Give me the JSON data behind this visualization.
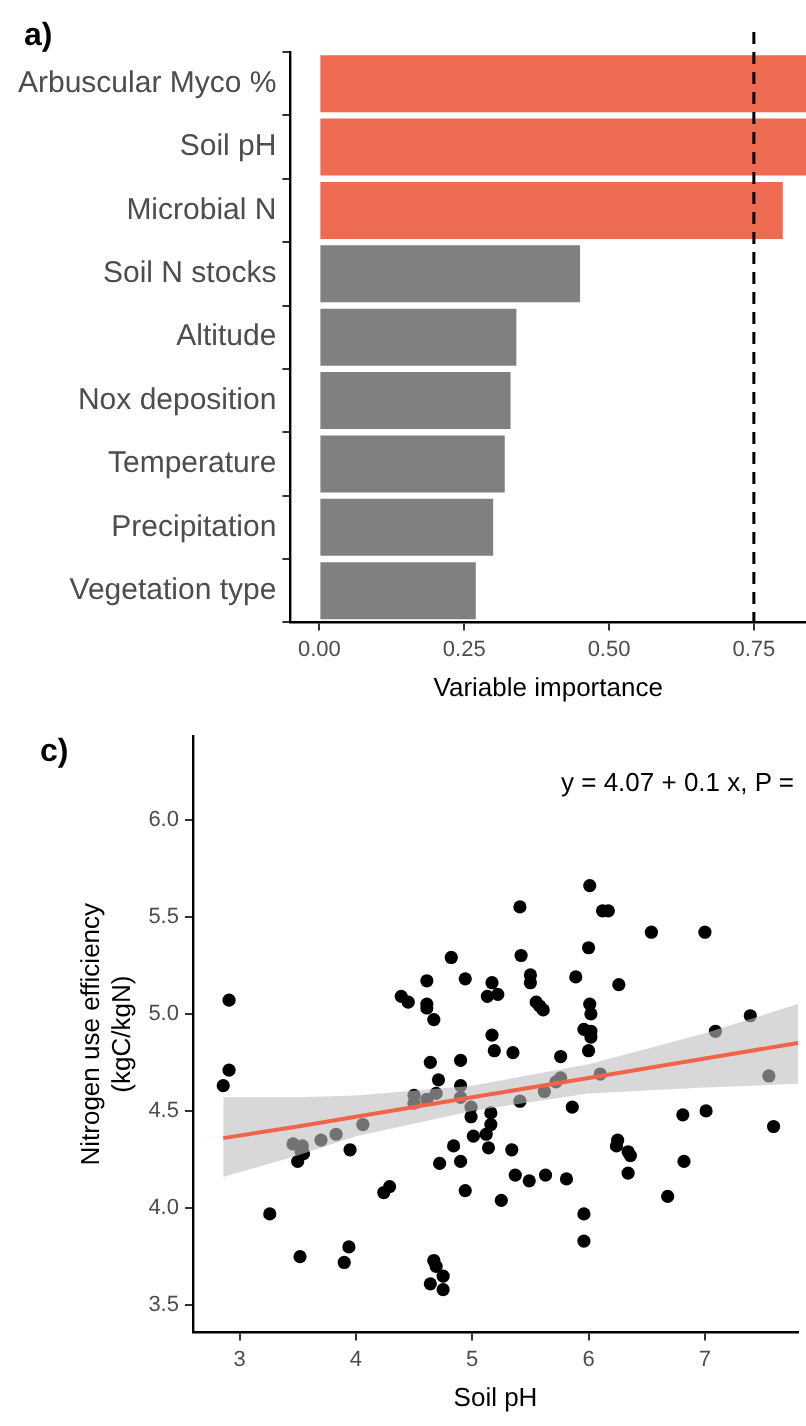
{
  "chart_data": [
    {
      "type": "bar",
      "orientation": "horizontal",
      "title": "a)",
      "xlabel": "Variable importance",
      "categories": [
        "Arbuscular Myco %",
        "Soil pH",
        "Microbial N",
        "Soil N stocks",
        "Altitude",
        "Nox deposition",
        "Temperature",
        "Precipitation",
        "Vegetation type"
      ],
      "values": [
        0.84,
        0.84,
        0.8,
        0.45,
        0.34,
        0.33,
        0.32,
        0.3,
        0.27
      ],
      "colors": [
        "#ee6a50",
        "#ee6a50",
        "#ee6a50",
        "#808080",
        "#808080",
        "#808080",
        "#808080",
        "#808080",
        "#808080"
      ],
      "xlim": [
        -0.05,
        0.84
      ],
      "xticks": [
        {
          "value": 0,
          "label": "0.00"
        },
        {
          "value": 0.25,
          "label": "0.25"
        },
        {
          "value": 0.5,
          "label": "0.50"
        },
        {
          "value": 0.75,
          "label": "0.75"
        }
      ],
      "ref_lines": [
        {
          "axis": "x",
          "value": 0.75,
          "color": "#000000",
          "line_style": "dashed"
        }
      ],
      "grid": false,
      "legend": false
    },
    {
      "type": "scatter",
      "title": "c)",
      "xlabel": "Soil pH",
      "ylabel": "Nitrogen use efficiency\n(kgC/kgN)",
      "annotations": [
        "y = 4.07 + 0.1 x, P ="
      ],
      "xlim": [
        2.6,
        7.8
      ],
      "ylim": [
        3.36,
        6.43
      ],
      "xticks": [
        3,
        4,
        5,
        6,
        7
      ],
      "yticks": [
        {
          "value": 3.5,
          "label": "3.5"
        },
        {
          "value": 4,
          "label": "4.0"
        },
        {
          "value": 4.5,
          "label": "4.5"
        },
        {
          "value": 5,
          "label": "5.0"
        },
        {
          "value": 5.5,
          "label": "5.5"
        },
        {
          "value": 6,
          "label": "6.0"
        }
      ],
      "grid": false,
      "legend": false,
      "series": [
        {
          "type": "scatter",
          "marker": "circle",
          "color": "#000000",
          "x": [
            2.86,
            2.91,
            2.91,
            3.26,
            3.46,
            3.5,
            3.53,
            3.54,
            3.55,
            3.52,
            3.7,
            3.83,
            3.9,
            3.94,
            3.95,
            4.06,
            4.24,
            4.29,
            4.39,
            4.45,
            4.5,
            4.5,
            4.61,
            4.61,
            4.61,
            4.61,
            4.64,
            4.67,
            4.64,
            4.67,
            4.69,
            4.75,
            4.75,
            4.69,
            4.71,
            4.72,
            4.82,
            4.84,
            4.9,
            4.9,
            4.9,
            4.9,
            4.94,
            4.94,
            4.99,
            4.99,
            5.01,
            5.13,
            5.17,
            5.17,
            5.19,
            5.22,
            5.12,
            5.16,
            5.16,
            5.14,
            5.25,
            5.34,
            5.35,
            5.37,
            5.41,
            5.42,
            5.41,
            5.49,
            5.5,
            5.5,
            5.55,
            5.58,
            5.61,
            5.62,
            5.63,
            5.72,
            5.76,
            5.76,
            5.81,
            5.86,
            5.89,
            5.96,
            5.96,
            5.96,
            6.0,
            6.01,
            6.0,
            6.01,
            6.02,
            6.02,
            6.02,
            6.1,
            6.12,
            6.17,
            6.26,
            6.24,
            6.25,
            6.34,
            6.36,
            6.34,
            6.54,
            6.68,
            6.81,
            6.82,
            7.0,
            7.01,
            7.09,
            7.39,
            7.55,
            7.59
          ],
          "values": [
            4.63,
            5.07,
            4.71,
            3.97,
            4.33,
            4.24,
            4.29,
            4.32,
            4.28,
            3.75,
            4.35,
            4.38,
            3.72,
            3.8,
            4.3,
            4.43,
            4.08,
            4.11,
            5.09,
            5.06,
            4.58,
            4.54,
            4.56,
            5.17,
            5.05,
            5.03,
            4.75,
            4.97,
            3.61,
            3.73,
            3.7,
            3.65,
            3.58,
            4.59,
            4.66,
            4.23,
            5.29,
            4.32,
            4.76,
            4.63,
            4.57,
            4.24,
            5.18,
            4.09,
            4.52,
            4.47,
            4.37,
            5.09,
            4.89,
            5.16,
            4.81,
            5.1,
            4.38,
            4.43,
            4.49,
            4.31,
            4.04,
            4.3,
            4.8,
            4.17,
            5.55,
            5.3,
            4.55,
            4.14,
            5.2,
            5.16,
            5.06,
            5.04,
            5.02,
            4.6,
            4.17,
            4.65,
            4.67,
            4.78,
            4.15,
            4.52,
            5.19,
            3.97,
            3.83,
            4.92,
            5.34,
            5.66,
            4.81,
            5.05,
            5.0,
            4.91,
            4.88,
            4.69,
            5.53,
            5.53,
            5.15,
            4.32,
            4.35,
            4.29,
            4.27,
            4.18,
            5.42,
            4.06,
            4.48,
            4.24,
            5.42,
            4.5,
            4.91,
            4.99,
            4.68,
            4.42
          ]
        },
        {
          "type": "line",
          "marker": "none",
          "color": "#f0654a",
          "x": [
            2.86,
            3.5,
            4,
            5,
            6,
            7,
            7.8
          ],
          "values": [
            4.36,
            4.42,
            4.47,
            4.57,
            4.67,
            4.77,
            4.85
          ],
          "lower": [
            4.16,
            4.27,
            4.37,
            4.5,
            4.59,
            4.62,
            4.64
          ],
          "upper": [
            4.57,
            4.57,
            4.58,
            4.63,
            4.74,
            4.9,
            5.05
          ]
        }
      ]
    }
  ]
}
